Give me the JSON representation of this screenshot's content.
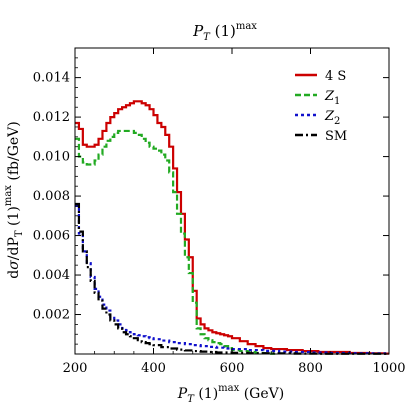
{
  "chart_data": {
    "type": "line",
    "title": "P_T(1)^max",
    "xlabel": "P_T(1)^max (GeV)",
    "ylabel": "dσ/dP_T(1)^max (fb/GeV)",
    "xlim": [
      200,
      1000
    ],
    "ylim": [
      0,
      0.0155
    ],
    "x_ticks": [
      200,
      400,
      600,
      800,
      1000
    ],
    "x_tick_labels": [
      "200",
      "400",
      "600",
      "800",
      "1000"
    ],
    "y_ticks": [
      0.002,
      0.004,
      0.006,
      0.008,
      0.01,
      0.012,
      0.014
    ],
    "y_tick_labels": [
      "0.002",
      "0.004",
      "0.006",
      "0.008",
      "0.010",
      "0.012",
      "0.014"
    ],
    "grid": false,
    "legend_position": "top-right",
    "step": true,
    "bin_width": 10,
    "series": [
      {
        "name": "4 S",
        "color": "#cc0000",
        "dash": "solid",
        "x": [
          200,
          210,
          220,
          230,
          240,
          250,
          260,
          270,
          280,
          290,
          300,
          310,
          320,
          330,
          340,
          350,
          360,
          370,
          380,
          390,
          400,
          410,
          420,
          430,
          440,
          450,
          460,
          470,
          480,
          490,
          500,
          510,
          520,
          530,
          540,
          550,
          560,
          570,
          580,
          590,
          600,
          620,
          640,
          660,
          680,
          700,
          740,
          780,
          820,
          860,
          900,
          950,
          990
        ],
        "y": [
          0.0117,
          0.0114,
          0.0106,
          0.0105,
          0.0105,
          0.0106,
          0.0109,
          0.0113,
          0.0117,
          0.012,
          0.0122,
          0.0124,
          0.0125,
          0.0126,
          0.0127,
          0.0128,
          0.0128,
          0.0127,
          0.0126,
          0.0124,
          0.0121,
          0.0117,
          0.0115,
          0.0111,
          0.0105,
          0.0094,
          0.0082,
          0.0071,
          0.0058,
          0.0049,
          0.0032,
          0.0018,
          0.0015,
          0.0013,
          0.0012,
          0.0011,
          0.00105,
          0.001,
          0.00095,
          0.0009,
          0.0008,
          0.00065,
          0.0005,
          0.0004,
          0.0003,
          0.00025,
          0.0002,
          0.00015,
          0.0001,
          0.0001,
          5e-05,
          3e-05,
          2e-05
        ]
      },
      {
        "name": "Z_1",
        "color": "#22aa22",
        "dash": "6,3",
        "x": [
          200,
          210,
          220,
          230,
          240,
          250,
          260,
          270,
          280,
          290,
          300,
          310,
          320,
          330,
          340,
          350,
          360,
          370,
          380,
          390,
          400,
          410,
          420,
          430,
          440,
          450,
          460,
          470,
          480,
          490,
          500,
          510,
          520,
          530,
          540,
          550,
          560,
          570,
          580,
          590,
          600,
          620,
          640,
          660,
          680,
          700
        ],
        "y": [
          0.0109,
          0.01,
          0.0097,
          0.0096,
          0.0096,
          0.0098,
          0.0101,
          0.0105,
          0.0108,
          0.011,
          0.0112,
          0.0113,
          0.0113,
          0.0113,
          0.0113,
          0.0112,
          0.0111,
          0.0109,
          0.0107,
          0.0105,
          0.0104,
          0.0103,
          0.0101,
          0.0098,
          0.0092,
          0.0082,
          0.0071,
          0.0061,
          0.0049,
          0.0041,
          0.0026,
          0.0013,
          0.001,
          0.0008,
          0.0007,
          0.0006,
          0.00055,
          0.0005,
          0.0004,
          0.0003,
          0.0002,
          0.00015,
          0.0001,
          5e-05,
          3e-05,
          1e-05
        ]
      },
      {
        "name": "Z_2",
        "color": "#1111cc",
        "dash": "3,3",
        "x": [
          200,
          210,
          220,
          230,
          240,
          250,
          260,
          270,
          280,
          290,
          300,
          310,
          320,
          330,
          340,
          350,
          360,
          370,
          380,
          390,
          400,
          420,
          440,
          460,
          480,
          500,
          520,
          540,
          560,
          580,
          600,
          640,
          680,
          720,
          760,
          800,
          850,
          900,
          950,
          990
        ],
        "y": [
          0.0075,
          0.0061,
          0.0052,
          0.0046,
          0.0039,
          0.0033,
          0.0029,
          0.0025,
          0.0022,
          0.0019,
          0.0017,
          0.0015,
          0.0013,
          0.0012,
          0.0011,
          0.001,
          0.00095,
          0.0009,
          0.00085,
          0.0008,
          0.00075,
          0.00068,
          0.0006,
          0.00055,
          0.0005,
          0.00045,
          0.0004,
          0.00036,
          0.00032,
          0.00028,
          0.00025,
          0.0002,
          0.00016,
          0.00012,
          0.0001,
          8e-05,
          5e-05,
          4e-05,
          3e-05,
          2e-05
        ]
      },
      {
        "name": "SM",
        "color": "#000000",
        "dash": "8,3,2,3",
        "x": [
          200,
          210,
          220,
          230,
          240,
          250,
          260,
          270,
          280,
          290,
          300,
          310,
          320,
          330,
          340,
          350,
          360,
          370,
          380,
          390,
          400,
          420,
          440,
          460,
          480,
          500,
          520,
          540,
          560,
          600,
          640,
          700,
          760,
          820,
          900,
          990
        ],
        "y": [
          0.0076,
          0.0062,
          0.0052,
          0.0044,
          0.0037,
          0.0031,
          0.0027,
          0.0023,
          0.002,
          0.0017,
          0.0015,
          0.0013,
          0.0011,
          0.001,
          0.0009,
          0.0008,
          0.0007,
          0.0006,
          0.00055,
          0.0005,
          0.00045,
          0.00035,
          0.00028,
          0.00022,
          0.00018,
          0.00015,
          0.00012,
          0.0001,
          8e-05,
          6e-05,
          4e-05,
          3e-05,
          2e-05,
          1e-05,
          1e-05,
          1e-05
        ]
      }
    ]
  }
}
